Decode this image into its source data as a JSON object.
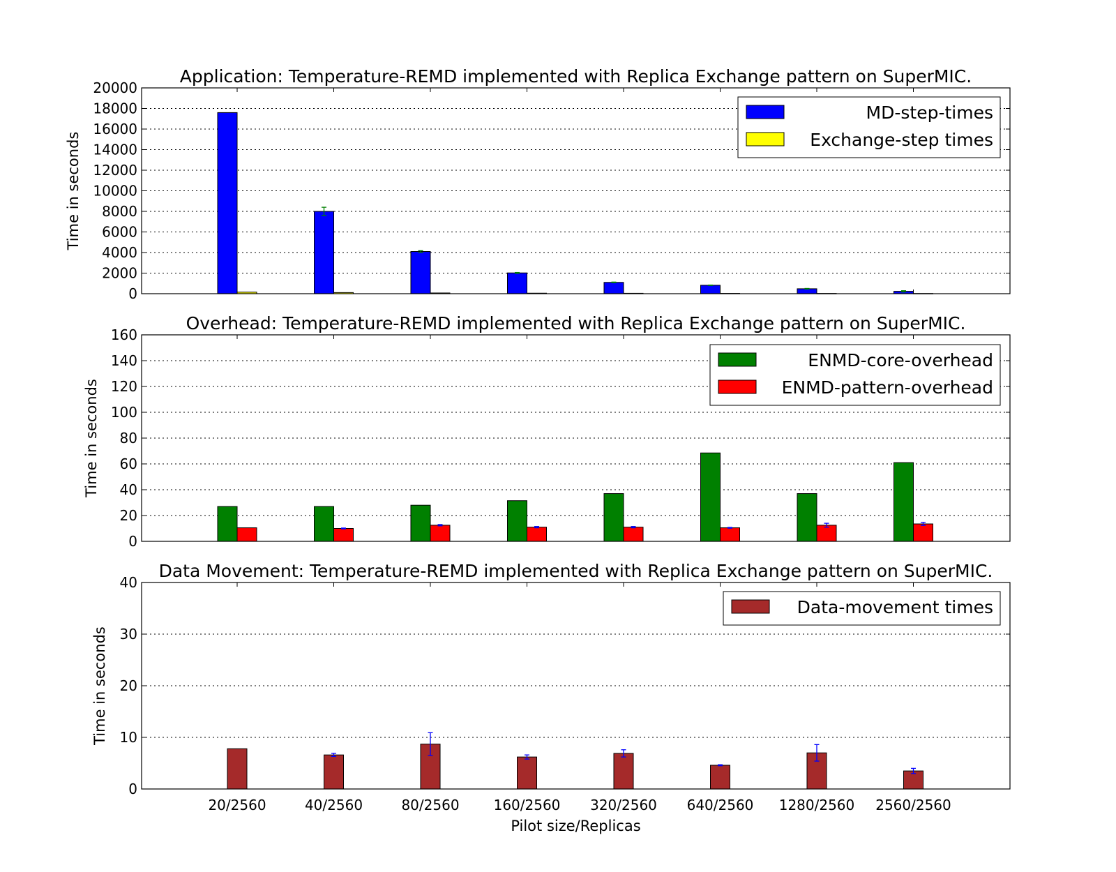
{
  "chart_data": [
    {
      "type": "bar",
      "title": "Application: Temperature-REMD implemented with Replica Exchange pattern on SuperMIC.",
      "ylabel": "Time in seconds",
      "xlabel": "",
      "ylim": [
        0,
        20000
      ],
      "yticks": [
        0,
        2000,
        4000,
        6000,
        8000,
        10000,
        12000,
        14000,
        16000,
        18000,
        20000
      ],
      "grid": true,
      "legend_position": "top-right",
      "categories": [
        "20/2560",
        "40/2560",
        "80/2560",
        "160/2560",
        "320/2560",
        "640/2560",
        "1280/2560",
        "2560/2560"
      ],
      "series": [
        {
          "name": "MD-step-times",
          "color": "#0000ff",
          "errorbar_color": "#008000",
          "values": [
            17600,
            8000,
            4100,
            2020,
            1100,
            820,
            480,
            230
          ],
          "errors": [
            0,
            400,
            80,
            40,
            30,
            20,
            30,
            60
          ]
        },
        {
          "name": "Exchange-step times",
          "color": "#ffff00",
          "errorbar_color": "#008000",
          "values": [
            150,
            110,
            70,
            50,
            40,
            30,
            25,
            20
          ],
          "errors": [
            0,
            0,
            0,
            0,
            0,
            0,
            0,
            0
          ]
        }
      ]
    },
    {
      "type": "bar",
      "title": "Overhead: Temperature-REMD implemented with Replica Exchange pattern on SuperMIC.",
      "ylabel": "Time in seconds",
      "xlabel": "",
      "ylim": [
        0,
        160
      ],
      "yticks": [
        0,
        20,
        40,
        60,
        80,
        100,
        120,
        140,
        160
      ],
      "grid": true,
      "legend_position": "top-right",
      "categories": [
        "20/2560",
        "40/2560",
        "80/2560",
        "160/2560",
        "320/2560",
        "640/2560",
        "1280/2560",
        "2560/2560"
      ],
      "series": [
        {
          "name": "ENMD-core-overhead",
          "color": "#008000",
          "errorbar_color": "#0000ff",
          "values": [
            27,
            27,
            28,
            31.5,
            37,
            68.5,
            37,
            61
          ],
          "errors": [
            0,
            0,
            0,
            0,
            0,
            0,
            0,
            0
          ]
        },
        {
          "name": "ENMD-pattern-overhead",
          "color": "#ff0000",
          "errorbar_color": "#0000ff",
          "values": [
            10.5,
            10,
            12.5,
            11,
            11,
            10.5,
            12.5,
            13.5
          ],
          "errors": [
            0,
            0.3,
            0.5,
            0.5,
            0.5,
            0.3,
            1.5,
            1.2
          ]
        }
      ]
    },
    {
      "type": "bar",
      "title": "Data Movement: Temperature-REMD implemented with Replica Exchange pattern on SuperMIC.",
      "ylabel": "Time in seconds",
      "xlabel": "Pilot size/Replicas",
      "ylim": [
        0,
        40
      ],
      "yticks": [
        0,
        10,
        20,
        30,
        40
      ],
      "grid": true,
      "legend_position": "top-right",
      "categories": [
        "20/2560",
        "40/2560",
        "80/2560",
        "160/2560",
        "320/2560",
        "640/2560",
        "1280/2560",
        "2560/2560"
      ],
      "series": [
        {
          "name": "Data-movement times",
          "color": "#a52a2a",
          "errorbar_color": "#0000ff",
          "values": [
            7.8,
            6.6,
            8.7,
            6.2,
            6.9,
            4.6,
            7.0,
            3.5
          ],
          "errors": [
            0,
            0.3,
            2.2,
            0.4,
            0.7,
            0.1,
            1.6,
            0.5
          ]
        }
      ]
    }
  ]
}
